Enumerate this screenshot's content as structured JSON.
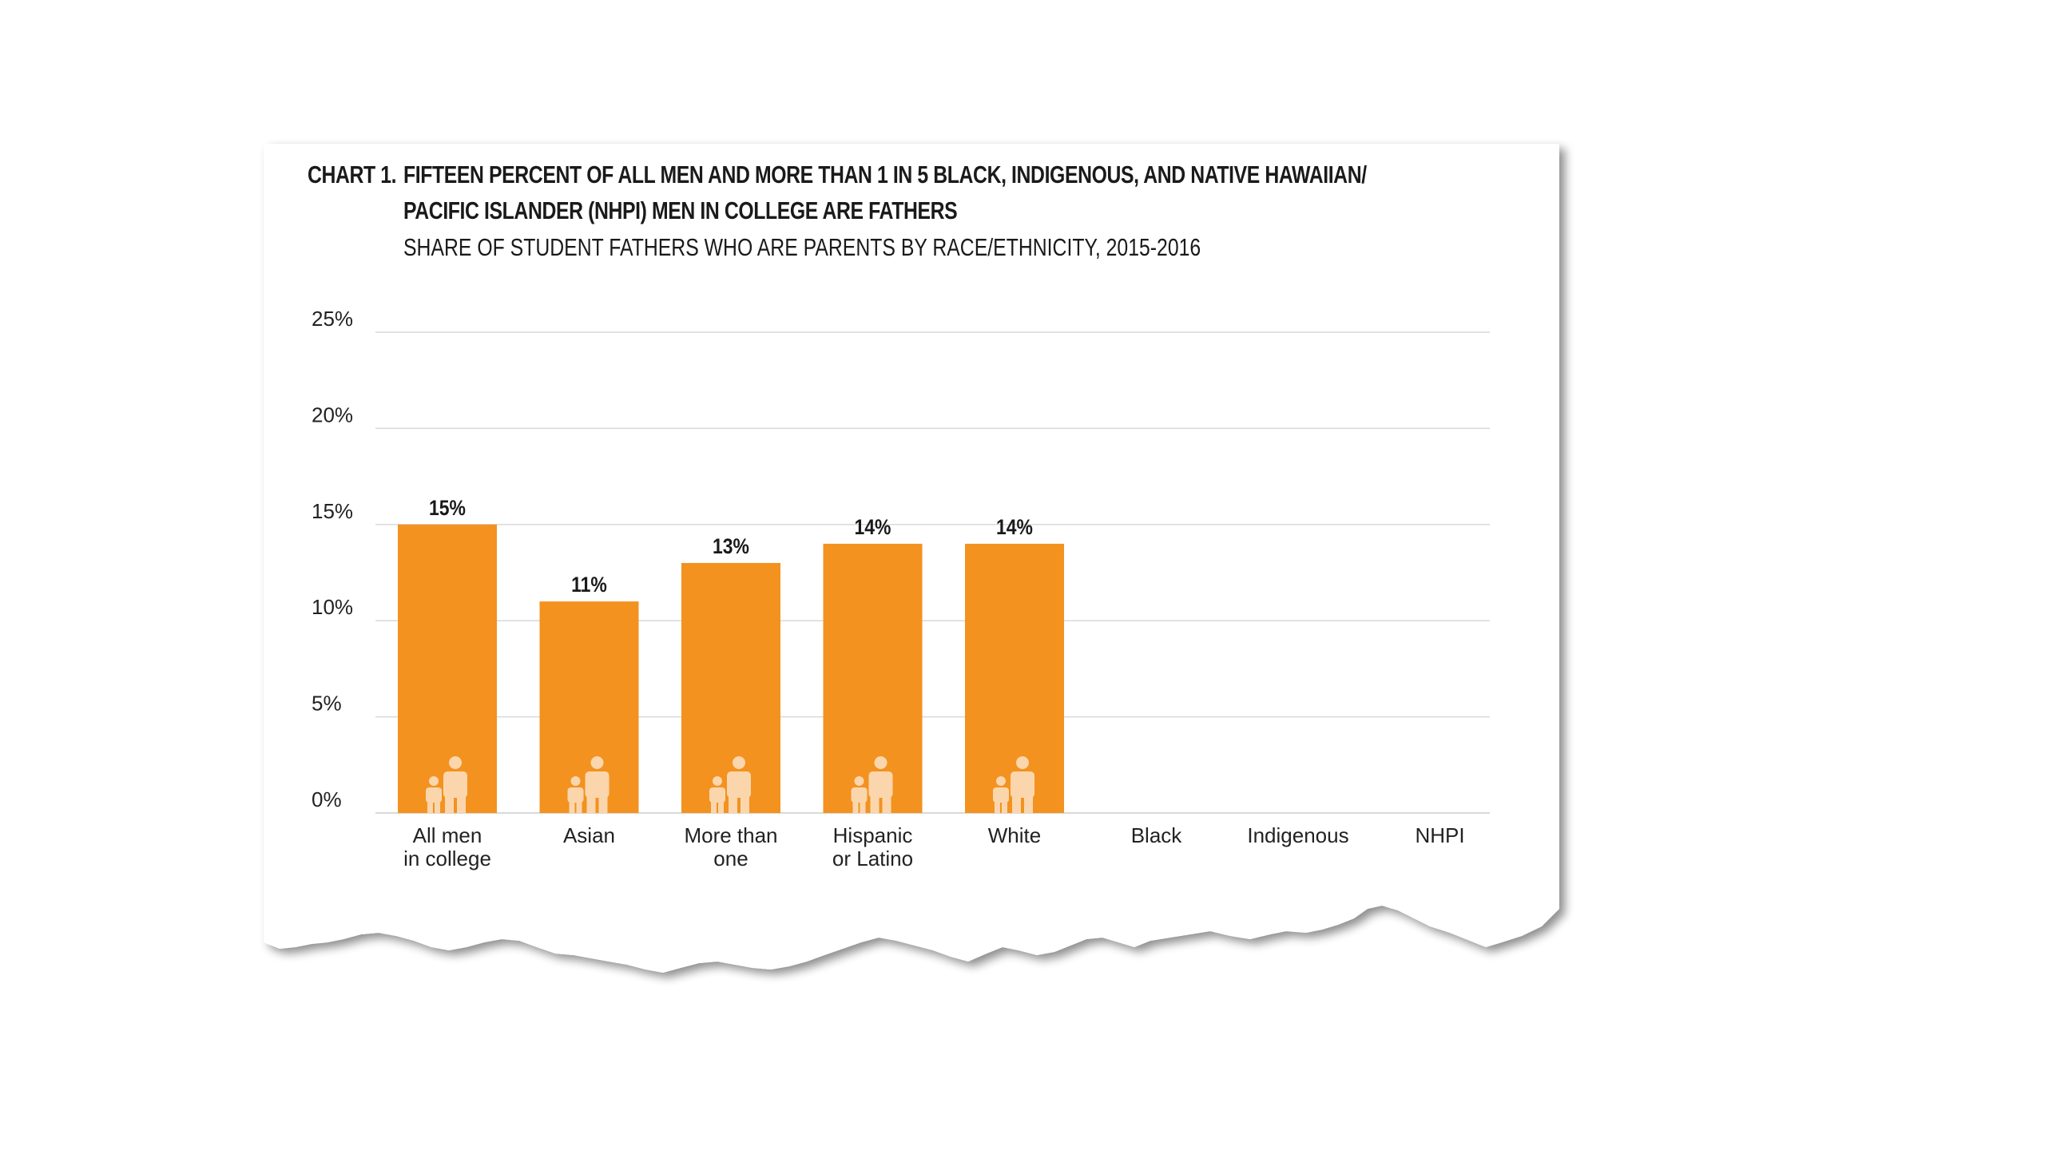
{
  "title": {
    "chart_number": "CHART 1.",
    "line1": "FIFTEEN PERCENT OF ALL MEN AND MORE THAN 1 IN 5 BLACK, INDIGENOUS, AND NATIVE HAWAIIAN/",
    "line2": "PACIFIC ISLANDER (NHPI) MEN IN COLLEGE ARE FATHERS",
    "subtitle": "SHARE OF STUDENT FATHERS WHO ARE PARENTS BY RACE/ETHNICITY, 2015-2016"
  },
  "chart_data": {
    "type": "bar",
    "categories": [
      [
        "All men",
        "in college"
      ],
      [
        "Asian"
      ],
      [
        "More than",
        "one"
      ],
      [
        "Hispanic",
        "or Latino"
      ],
      [
        "White"
      ],
      [
        "Black"
      ],
      [
        "Indigenous"
      ],
      [
        "NHPI"
      ]
    ],
    "values": [
      15,
      11,
      13,
      14,
      14,
      null,
      null,
      null
    ],
    "value_labels": [
      "15%",
      "11%",
      "13%",
      "14%",
      "14%",
      "",
      "",
      ""
    ],
    "ylim": [
      0,
      25
    ],
    "yticks": [
      0,
      5,
      10,
      15,
      20,
      25
    ],
    "ytick_labels": [
      "0%",
      "5%",
      "10%",
      "15%",
      "20%",
      "25%"
    ],
    "xlabel": "",
    "ylabel": "",
    "grid": true,
    "bar_color": "#f3921f",
    "icon": "parent-child-icon",
    "icon_color": "#fbd6ad",
    "gridline_color": "#d9d9d9"
  }
}
